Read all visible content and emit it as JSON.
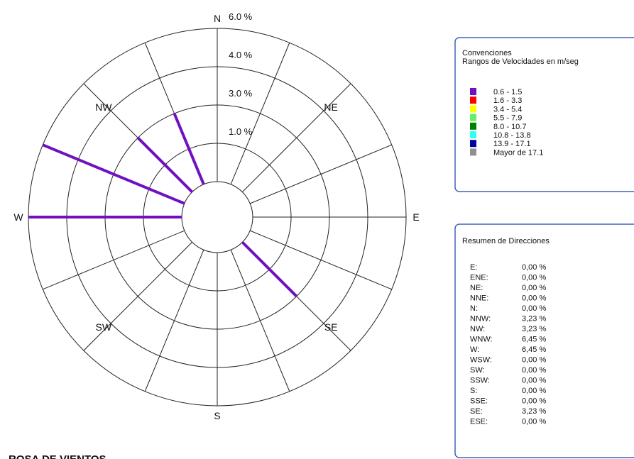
{
  "chart_data": {
    "type": "windrose",
    "title": "ROSA DE VIENTOS",
    "direction_labels": [
      "N",
      "NE",
      "E",
      "SE",
      "S",
      "SW",
      "W",
      "NW"
    ],
    "ring_labels": [
      "1.0 %",
      "3.0 %",
      "4.0 %",
      "6.0 %"
    ],
    "rlim": [
      0,
      6.45
    ],
    "legend_title": "Convenciones",
    "legend_subtitle": "Rangos de Velocidades en m/seg",
    "speed_ranges": [
      {
        "name": "0.6 - 1.5",
        "color": "#7010c0"
      },
      {
        "name": "1.6 - 3.3",
        "color": "#ff0000"
      },
      {
        "name": "3.4 - 5.4",
        "color": "#ffff00"
      },
      {
        "name": "5.5 - 7.9",
        "color": "#66ee66"
      },
      {
        "name": "8.0 - 10.7",
        "color": "#008000"
      },
      {
        "name": "10.8 - 13.8",
        "color": "#33ffee"
      },
      {
        "name": "13.9 - 17.1",
        "color": "#0000a0"
      },
      {
        "name": "Mayor de 17.1",
        "color": "#909090"
      }
    ],
    "summary_title": "Resumen de Direcciones",
    "categories": [
      "E:",
      "ENE:",
      "NE:",
      "NNE:",
      "N:",
      "NNW:",
      "NW:",
      "WNW:",
      "W:",
      "WSW:",
      "SW:",
      "SSW:",
      "S:",
      "SSE:",
      "SE:",
      "ESE:"
    ],
    "values": [
      0,
      0,
      0,
      0,
      0,
      3.23,
      3.23,
      6.45,
      6.45,
      0,
      0,
      0,
      0,
      0,
      3.23,
      0
    ],
    "value_labels": [
      "0,00 %",
      "0,00 %",
      "0,00 %",
      "0,00 %",
      "0,00 %",
      "3,23 %",
      "3,23 %",
      "6,45 %",
      "6,45 %",
      "0,00 %",
      "0,00 %",
      "0,00 %",
      "0,00 %",
      "0,00 %",
      "3,23 %",
      "0,00 %"
    ]
  }
}
